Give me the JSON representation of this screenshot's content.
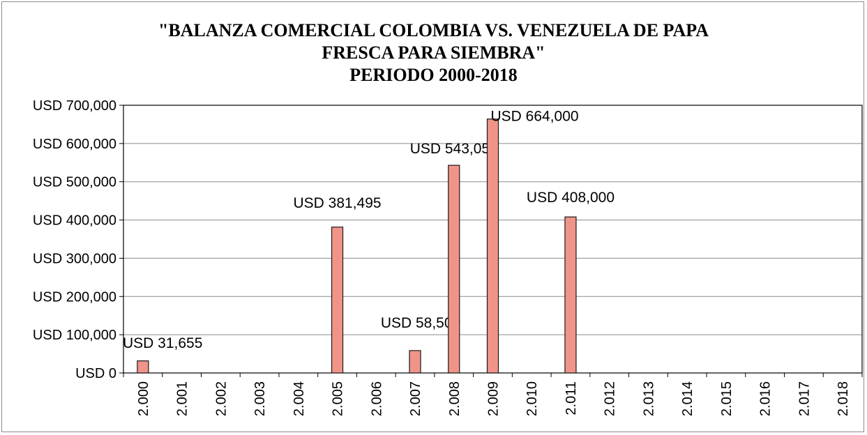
{
  "chart_data": {
    "type": "bar",
    "title_lines": [
      "\"BALANZA COMERCIAL COLOMBIA VS. VENEZUELA DE PAPA",
      "FRESCA PARA SIEMBRA\"",
      "PERIODO 2000-2018"
    ],
    "categories": [
      "2.000",
      "2.001",
      "2.002",
      "2.003",
      "2.004",
      "2.005",
      "2.006",
      "2.007",
      "2.008",
      "2.009",
      "2.010",
      "2.011",
      "2.012",
      "2.013",
      "2.014",
      "2.015",
      "2.016",
      "2.017",
      "2.018"
    ],
    "values": [
      31655,
      0,
      0,
      0,
      0,
      381495,
      0,
      58500,
      543050,
      664000,
      0,
      408000,
      0,
      0,
      0,
      0,
      0,
      0,
      0
    ],
    "data_labels": [
      "USD 31,655",
      "",
      "",
      "",
      "",
      "USD 381,495",
      "",
      "USD 58,500",
      "USD 543,050",
      "USD 664,000",
      "",
      "USD 408,000",
      "",
      "",
      "",
      "",
      "",
      "",
      ""
    ],
    "y_ticks": [
      0,
      100000,
      200000,
      300000,
      400000,
      500000,
      600000,
      700000
    ],
    "y_tick_labels": [
      "USD 0",
      "USD 100,000",
      "USD 200,000",
      "USD 300,000",
      "USD 400,000",
      "USD 500,000",
      "USD 600,000",
      "USD 700,000"
    ],
    "ylim": [
      0,
      700000
    ],
    "grid": true,
    "bar_color": "#f0948a",
    "bar_edge_color": "#1a1a1a",
    "legend": "none"
  }
}
